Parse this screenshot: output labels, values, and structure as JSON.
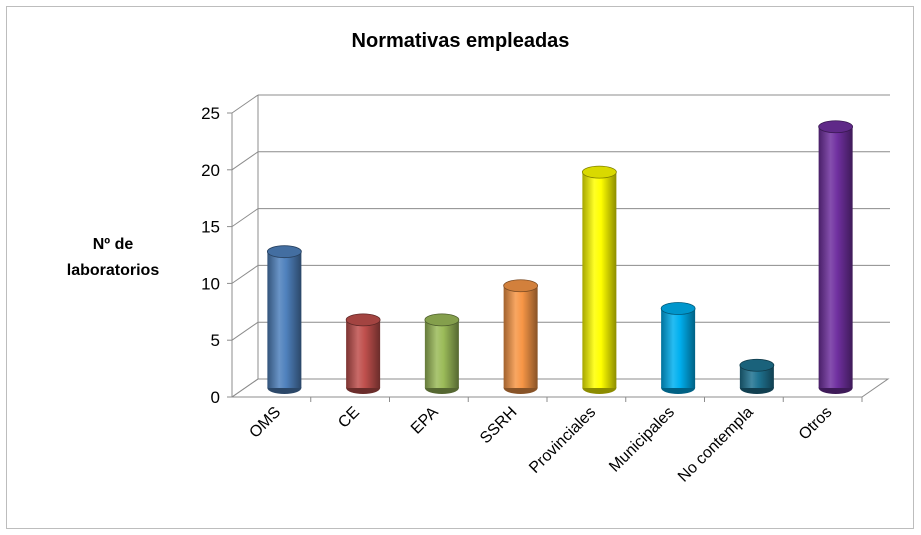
{
  "chart_data": {
    "type": "bar",
    "title": "Normativas empleadas",
    "ylabel_line1": "Nº de",
    "ylabel_line2": "laboratorios",
    "xlabel": "",
    "ylim": [
      0,
      25
    ],
    "yticks": [
      0,
      5,
      10,
      15,
      20,
      25
    ],
    "categories": [
      "OMS",
      "CE",
      "EPA",
      "SSRH",
      "Provinciales",
      "Municipales",
      "No contempla",
      "Otros"
    ],
    "values": [
      12,
      6,
      6,
      9,
      19,
      7,
      2,
      23
    ],
    "colors": [
      "#4f81bd",
      "#c0504d",
      "#9bbb59",
      "#f79646",
      "#ffff00",
      "#00b0f0",
      "#1f7391",
      "#7030a0"
    ],
    "style": "3d-cylinder",
    "grid": true,
    "legend": "none"
  }
}
